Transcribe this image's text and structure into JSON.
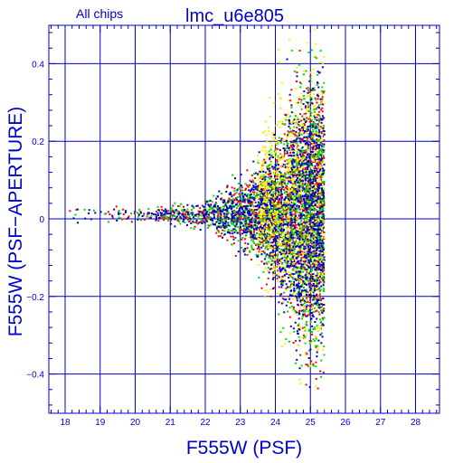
{
  "chart_data": {
    "type": "scatter",
    "title_left": "All chips",
    "title": "lmc_u6e805",
    "xlabel": "F555W (PSF)",
    "ylabel": "F555W (PSF−APERTURE)",
    "xlim": [
      17.5,
      28.7
    ],
    "ylim": [
      -0.5,
      0.5
    ],
    "xticks": [
      "18",
      "19",
      "20",
      "21",
      "22",
      "23",
      "24",
      "25",
      "26",
      "27",
      "28"
    ],
    "yticks": [
      "0.4",
      "0.2",
      "0",
      "−0.2",
      "−0.4"
    ],
    "grid": true,
    "series_colors": [
      "#ff0000",
      "#00dd00",
      "#0000cc",
      "#ffee00"
    ],
    "series": [
      {
        "color": "#ff0000",
        "note_count": 1700
      },
      {
        "color": "#00dd00",
        "note_count": 1700
      },
      {
        "color": "#0000cc",
        "note_count": 1700
      },
      {
        "color": "#ffee00",
        "note_count": 700
      }
    ]
  },
  "colors": {
    "axis": "#0000cc",
    "background": "#ffffff"
  }
}
